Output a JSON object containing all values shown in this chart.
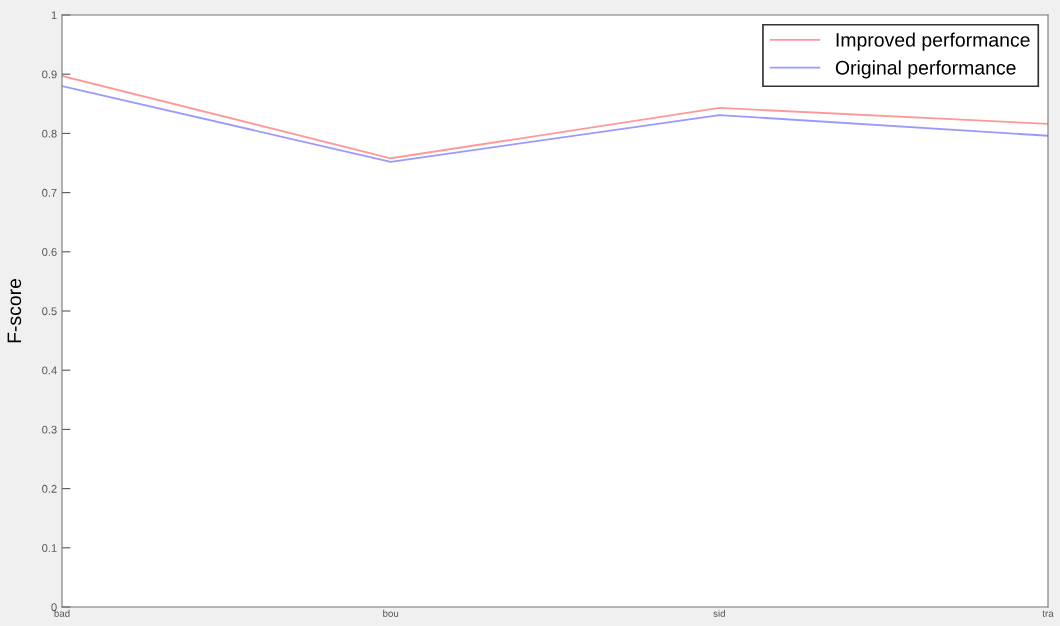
{
  "chart_data": {
    "type": "line",
    "ylabel": "F-score",
    "categories": [
      "bad",
      "bou",
      "sid",
      "tra"
    ],
    "series": [
      {
        "name": "Improved performance",
        "color": "#ff9999",
        "values": [
          0.897,
          0.758,
          0.843,
          0.816
        ]
      },
      {
        "name": "Original performance",
        "color": "#9999ff",
        "values": [
          0.88,
          0.752,
          0.831,
          0.796
        ]
      }
    ],
    "ylim": [
      0,
      1
    ],
    "yticks": [
      0,
      0.1,
      0.2,
      0.3,
      0.4,
      0.5,
      0.6,
      0.7,
      0.8,
      0.9,
      1
    ],
    "grid": false,
    "legend": "top right",
    "marker": "none",
    "line_style": "solid"
  }
}
